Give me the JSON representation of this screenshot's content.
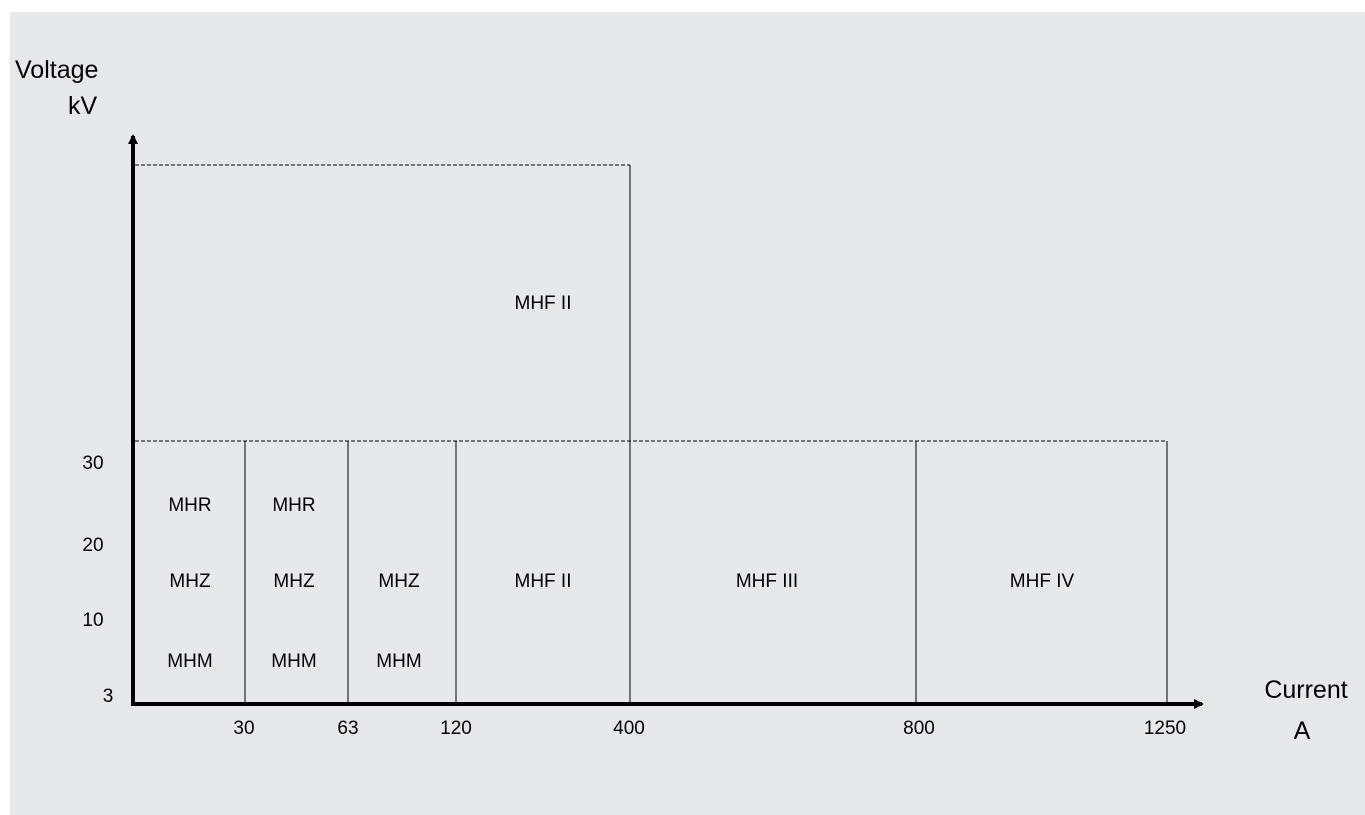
{
  "background_color": "#e7e8ea",
  "line_color": "#000000",
  "y_axis": {
    "label_line1": "Voltage",
    "label_line2": "kV",
    "ticks": [
      "30",
      "20",
      "10",
      "3"
    ]
  },
  "x_axis": {
    "label_line1": "Current",
    "label_line2": "A",
    "ticks": [
      "30",
      "63",
      "120",
      "400",
      "800",
      "1250"
    ]
  },
  "regions": {
    "col1": {
      "top": "MHR",
      "mid": "MHZ",
      "bot": "MHM"
    },
    "col2": {
      "top": "MHR",
      "mid": "MHZ",
      "bot": "MHM"
    },
    "col3": {
      "mid": "MHZ",
      "bot": "MHM"
    },
    "col4": {
      "mid": "MHF II"
    },
    "col5": {
      "mid": "MHF III"
    },
    "col6": {
      "mid": "MHF IV"
    },
    "upper": {
      "label": "MHF II"
    }
  }
}
